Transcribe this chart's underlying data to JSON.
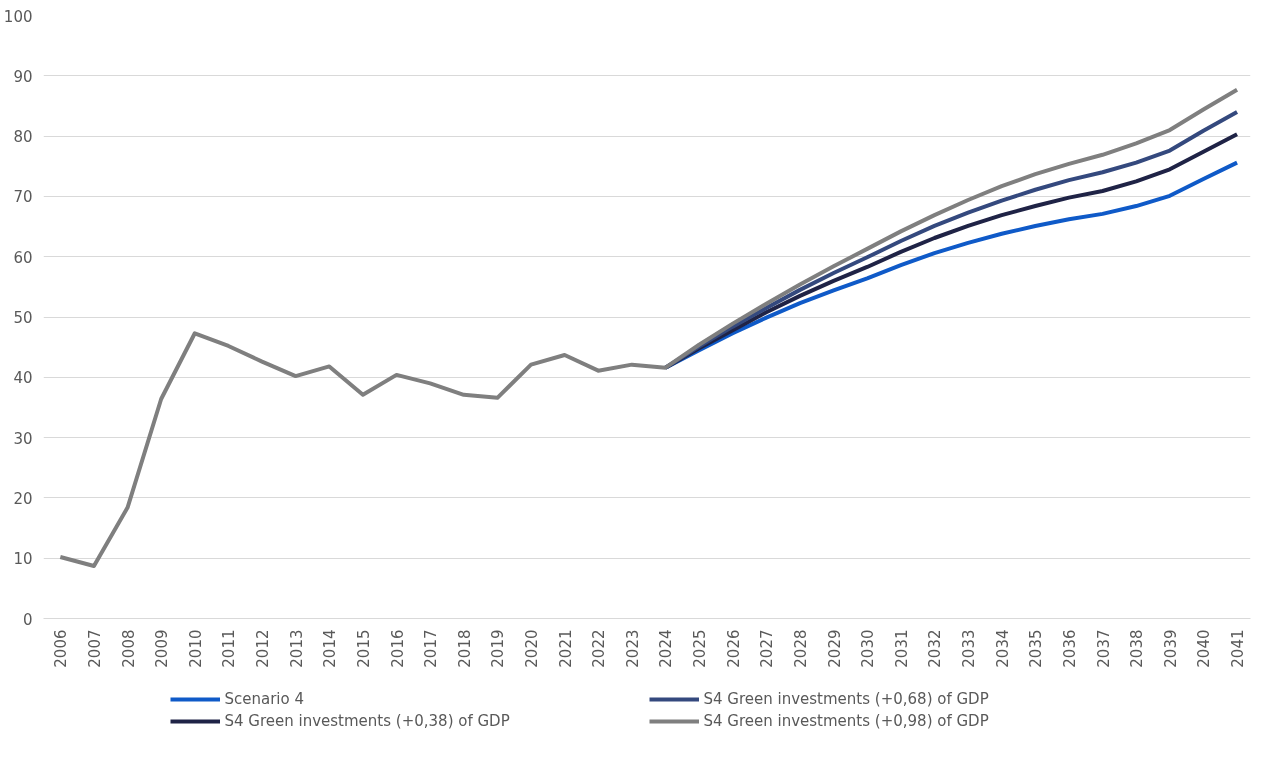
{
  "chart_data": {
    "type": "line",
    "categories": [
      "2006",
      "2007",
      "2008",
      "2009",
      "2010",
      "2011",
      "2012",
      "2013",
      "2014",
      "2015",
      "2016",
      "2017",
      "2018",
      "2019",
      "2020",
      "2021",
      "2022",
      "2023",
      "2024",
      "2025",
      "2026",
      "2027",
      "2028",
      "2029",
      "2030",
      "2031",
      "2032",
      "2033",
      "2034",
      "2035",
      "2036",
      "2037",
      "2038",
      "2039",
      "2040",
      "2041"
    ],
    "series": [
      {
        "name": "Scenario 4",
        "color": "#0f5ac8",
        "values": [
          null,
          null,
          null,
          null,
          null,
          null,
          null,
          null,
          null,
          null,
          null,
          null,
          null,
          null,
          null,
          null,
          null,
          null,
          41.6,
          44.5,
          47.3,
          49.9,
          52.3,
          54.4,
          56.4,
          58.6,
          60.6,
          62.3,
          63.8,
          65.1,
          66.2,
          67.1,
          68.4,
          70.1,
          72.9,
          75.6
        ]
      },
      {
        "name": "S4 Green investments (+0,38) of GDP",
        "color": "#1f2346",
        "values": [
          null,
          null,
          null,
          null,
          null,
          null,
          null,
          null,
          null,
          null,
          null,
          null,
          null,
          null,
          null,
          null,
          null,
          null,
          41.6,
          44.8,
          47.8,
          50.8,
          53.5,
          56.0,
          58.3,
          60.8,
          63.1,
          65.1,
          66.9,
          68.4,
          69.8,
          70.9,
          72.5,
          74.5,
          77.4,
          80.3
        ]
      },
      {
        "name": "S4 Green investments (+0,68) of GDP",
        "color": "#34497e",
        "values": [
          null,
          null,
          null,
          null,
          null,
          null,
          null,
          null,
          null,
          null,
          null,
          null,
          null,
          null,
          null,
          null,
          null,
          null,
          41.6,
          45.1,
          48.4,
          51.5,
          54.5,
          57.3,
          59.9,
          62.6,
          65.1,
          67.3,
          69.3,
          71.1,
          72.7,
          74.0,
          75.6,
          77.6,
          80.9,
          84.0
        ]
      },
      {
        "name": "S4 Green investments (+0,98) of GDP",
        "color": "#7f7f7f",
        "values": [
          10.2,
          8.7,
          18.4,
          36.4,
          47.3,
          45.2,
          42.6,
          40.2,
          41.8,
          37.1,
          40.4,
          39.0,
          37.1,
          36.6,
          42.1,
          43.7,
          41.1,
          42.1,
          41.6,
          45.4,
          48.9,
          52.2,
          55.4,
          58.4,
          61.3,
          64.2,
          66.9,
          69.4,
          71.7,
          73.7,
          75.4,
          76.9,
          78.8,
          81.0,
          84.4,
          87.7
        ]
      }
    ],
    "ylim": [
      0,
      100
    ],
    "yticks": [
      0,
      10,
      20,
      30,
      40,
      50,
      60,
      70,
      80,
      90,
      100
    ],
    "grid": "y",
    "legend": "bottom",
    "marker": "none",
    "line_style": "solid"
  }
}
